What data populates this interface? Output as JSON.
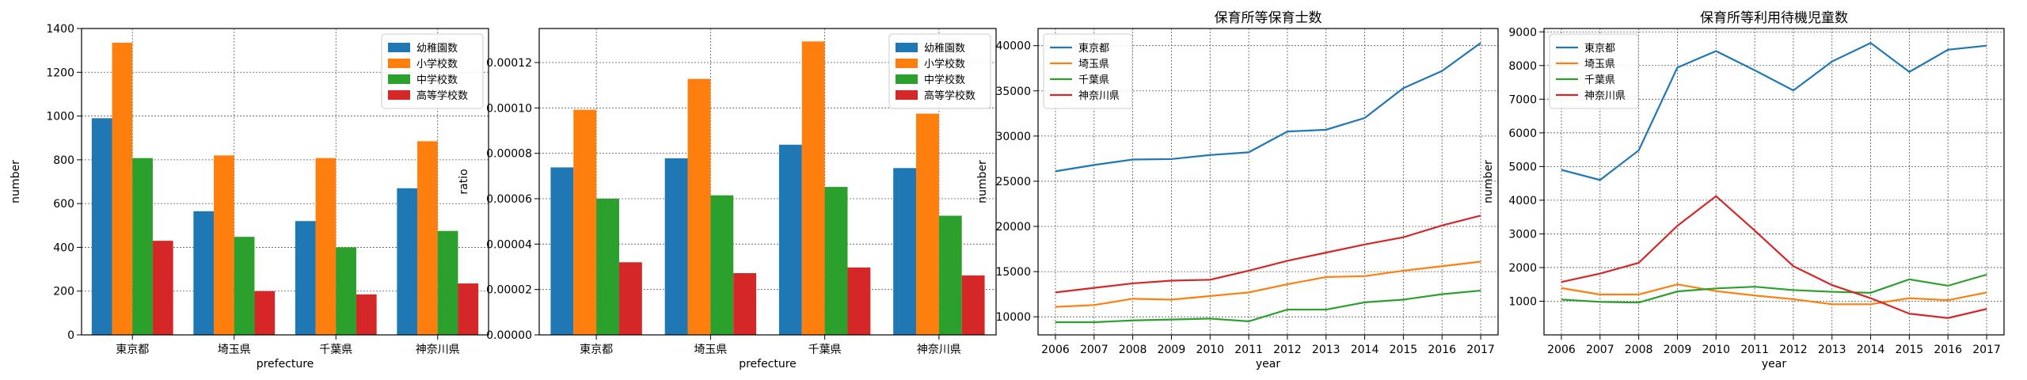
{
  "chart_data": [
    {
      "type": "bar",
      "title": "",
      "xlabel": "prefecture",
      "ylabel": "number",
      "categories": [
        "東京都",
        "埼玉県",
        "千葉県",
        "神奈川県"
      ],
      "series": [
        {
          "name": "幼稚園数",
          "values": [
            990,
            565,
            520,
            670
          ]
        },
        {
          "name": "小学校数",
          "values": [
            1335,
            820,
            808,
            885
          ]
        },
        {
          "name": "中学校数",
          "values": [
            808,
            448,
            400,
            475
          ]
        },
        {
          "name": "高等学校数",
          "values": [
            430,
            200,
            185,
            235
          ]
        }
      ],
      "ylim": [
        0,
        1400
      ],
      "yticks": [
        0,
        200,
        400,
        600,
        800,
        1000,
        1200,
        1400
      ],
      "ytick_labels": [
        "0",
        "200",
        "400",
        "600",
        "800",
        "1000",
        "1200",
        "1400"
      ],
      "grid": true,
      "legend_position": "top-right"
    },
    {
      "type": "bar",
      "title": "",
      "xlabel": "prefecture",
      "ylabel": "ratio",
      "categories": [
        "東京都",
        "埼玉県",
        "千葉県",
        "神奈川県"
      ],
      "series": [
        {
          "name": "幼稚園数",
          "values": [
            7.38e-05,
            7.78e-05,
            8.38e-05,
            7.35e-05
          ]
        },
        {
          "name": "小学校数",
          "values": [
            9.92e-05,
            0.0001128,
            0.0001293,
            9.75e-05
          ]
        },
        {
          "name": "中学校数",
          "values": [
            6e-05,
            6.15e-05,
            6.52e-05,
            5.25e-05
          ]
        },
        {
          "name": "高等学校数",
          "values": [
            3.2e-05,
            2.72e-05,
            2.97e-05,
            2.62e-05
          ]
        }
      ],
      "ylim": [
        0,
        0.000135
      ],
      "yticks": [
        0,
        2e-05,
        4e-05,
        6e-05,
        8e-05,
        0.0001,
        0.00012
      ],
      "ytick_labels": [
        "0.00000",
        "0.00002",
        "0.00004",
        "0.00006",
        "0.00008",
        "0.00010",
        "0.00012"
      ],
      "grid": true,
      "legend_position": "top-right"
    },
    {
      "type": "line",
      "title": "保育所等保育士数",
      "xlabel": "year",
      "ylabel": "number",
      "x": [
        2006,
        2007,
        2008,
        2009,
        2010,
        2011,
        2012,
        2013,
        2014,
        2015,
        2016,
        2017
      ],
      "series": [
        {
          "name": "東京都",
          "values": [
            26100,
            26800,
            27400,
            27450,
            27900,
            28200,
            30500,
            30700,
            32000,
            35300,
            37200,
            40300
          ]
        },
        {
          "name": "埼玉県",
          "values": [
            11100,
            11300,
            12000,
            11900,
            12300,
            12700,
            13600,
            14400,
            14500,
            15100,
            15600,
            16100
          ]
        },
        {
          "name": "千葉県",
          "values": [
            9400,
            9400,
            9600,
            9700,
            9800,
            9500,
            10800,
            10800,
            11600,
            11900,
            12500,
            12900
          ]
        },
        {
          "name": "神奈川県",
          "values": [
            12700,
            13200,
            13700,
            14000,
            14100,
            15100,
            16200,
            17100,
            18000,
            18800,
            20100,
            21200
          ]
        }
      ],
      "xlim": [
        2005.55,
        2017.45
      ],
      "ylim": [
        8000,
        41900
      ],
      "yticks": [
        10000,
        15000,
        20000,
        25000,
        30000,
        35000,
        40000
      ],
      "ytick_labels": [
        "10000",
        "15000",
        "20000",
        "25000",
        "30000",
        "35000",
        "40000"
      ],
      "grid": true,
      "legend_position": "top-left"
    },
    {
      "type": "line",
      "title": "保育所等利用待機児童数",
      "xlabel": "year",
      "ylabel": "number",
      "x": [
        2006,
        2007,
        2008,
        2009,
        2010,
        2011,
        2012,
        2013,
        2014,
        2015,
        2016,
        2017
      ],
      "series": [
        {
          "name": "東京都",
          "values": [
            4900,
            4600,
            5480,
            7940,
            8430,
            7860,
            7260,
            8120,
            8670,
            7810,
            8470,
            8590
          ]
        },
        {
          "name": "埼玉県",
          "values": [
            1390,
            1200,
            1200,
            1500,
            1300,
            1170,
            1060,
            910,
            910,
            1090,
            1030,
            1260
          ]
        },
        {
          "name": "千葉県",
          "values": [
            1050,
            980,
            960,
            1290,
            1380,
            1430,
            1330,
            1280,
            1250,
            1650,
            1460,
            1790
          ]
        },
        {
          "name": "神奈川県",
          "values": [
            1570,
            1820,
            2140,
            3240,
            4120,
            3100,
            2040,
            1480,
            1090,
            630,
            500,
            770
          ]
        }
      ],
      "xlim": [
        2005.55,
        2017.45
      ],
      "ylim": [
        0,
        9100
      ],
      "yticks": [
        1000,
        2000,
        3000,
        4000,
        5000,
        6000,
        7000,
        8000,
        9000
      ],
      "ytick_labels": [
        "1000",
        "2000",
        "3000",
        "4000",
        "5000",
        "6000",
        "7000",
        "8000",
        "9000"
      ],
      "grid": true,
      "legend_position": "top-left"
    }
  ],
  "colors": [
    "#1f77b4",
    "#ff7f0e",
    "#2ca02c",
    "#d62728"
  ]
}
